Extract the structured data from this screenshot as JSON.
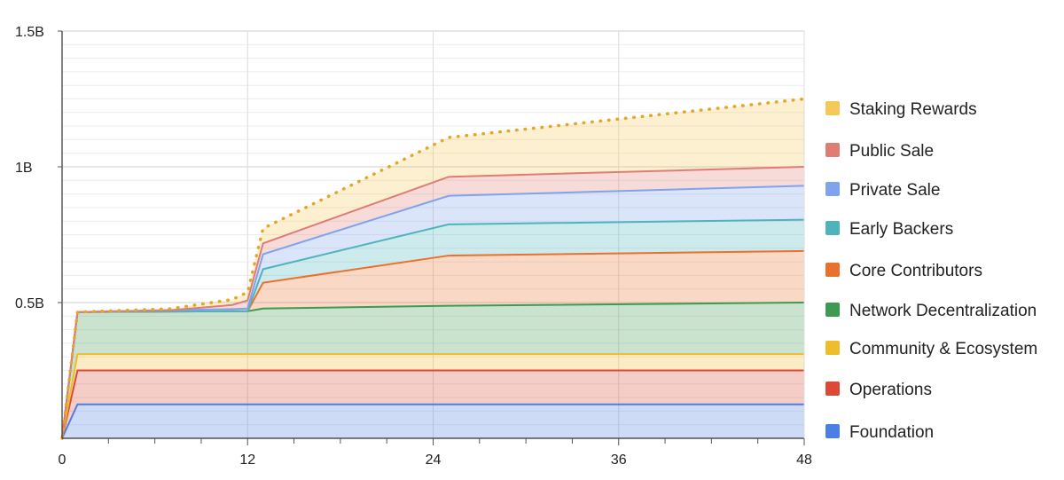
{
  "chart_data": {
    "type": "area",
    "stacked": true,
    "title": "",
    "xlabel": "",
    "ylabel": "",
    "x_range": [
      0,
      48
    ],
    "y_range": [
      0,
      1500000000
    ],
    "x_ticks": [
      {
        "value": 0,
        "label": "0"
      },
      {
        "value": 12,
        "label": "12"
      },
      {
        "value": 24,
        "label": "24"
      },
      {
        "value": 36,
        "label": "36"
      },
      {
        "value": 48,
        "label": "48"
      }
    ],
    "y_ticks": [
      {
        "value": 500000000,
        "label": "0.5B"
      },
      {
        "value": 1000000000,
        "label": "1B"
      },
      {
        "value": 1500000000,
        "label": "1.5B"
      }
    ],
    "grid": true,
    "legend_position": "right",
    "x": [
      0,
      1,
      7,
      11,
      12,
      13,
      25,
      48
    ],
    "series": [
      {
        "name": "Foundation",
        "color": "#4a7fe3",
        "values": [
          0,
          125000000,
          125000000,
          125000000,
          125000000,
          125000000,
          125000000,
          125000000
        ]
      },
      {
        "name": "Operations",
        "color": "#dc4a36",
        "values": [
          0,
          125000000,
          125000000,
          125000000,
          125000000,
          125000000,
          125000000,
          125000000
        ]
      },
      {
        "name": "Community & Ecosystem",
        "color": "#efbc2e",
        "values": [
          0,
          60000000,
          60000000,
          60000000,
          60000000,
          60000000,
          60000000,
          60000000
        ]
      },
      {
        "name": "Network Decentralization",
        "color": "#3f9a51",
        "values": [
          0,
          155000000,
          157000000,
          158000000,
          158000000,
          168000000,
          178000000,
          190000000
        ]
      },
      {
        "name": "Core Contributors",
        "color": "#e8722d",
        "values": [
          0,
          0,
          0,
          0,
          0,
          95000000,
          185000000,
          190000000
        ]
      },
      {
        "name": "Early Backers",
        "color": "#4db3bd",
        "values": [
          0,
          0,
          0,
          0,
          0,
          50000000,
          115000000,
          115000000
        ]
      },
      {
        "name": "Private Sale",
        "color": "#7fa3ec",
        "values": [
          0,
          0,
          5000000,
          8000000,
          10000000,
          55000000,
          105000000,
          125000000
        ]
      },
      {
        "name": "Public Sale",
        "color": "#e07d72",
        "values": [
          0,
          0,
          0,
          15000000,
          30000000,
          40000000,
          70000000,
          70000000
        ]
      },
      {
        "name": "Staking Rewards",
        "color": "#f4c95a",
        "values": [
          0,
          0,
          5000000,
          20000000,
          30000000,
          55000000,
          145000000,
          250000000
        ]
      }
    ],
    "total_line": {
      "style": "dotted",
      "color": "#e2a62a"
    },
    "legend_order": [
      "Staking Rewards",
      "Public Sale",
      "Private Sale",
      "Early Backers",
      "Core Contributors",
      "Network Decentralization",
      "Community & Ecosystem",
      "Operations",
      "Foundation"
    ]
  }
}
